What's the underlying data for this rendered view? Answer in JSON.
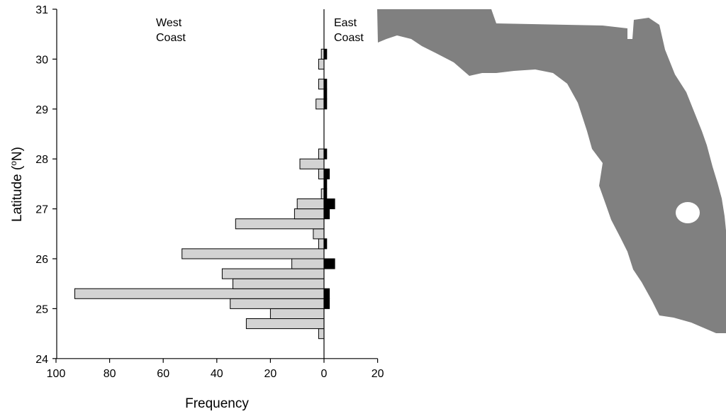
{
  "chart_data": {
    "type": "bar",
    "orientation": "horizontal-diverging",
    "title": "",
    "xlabel": "Frequency",
    "ylabel": "Latitude (°N)",
    "ylabel_parts": {
      "main": "Latitude (",
      "sup": "o",
      "end": "N)"
    },
    "xlim": [
      100,
      20
    ],
    "ylim": [
      24,
      31
    ],
    "x_ticks": [
      "100",
      "80",
      "60",
      "40",
      "20",
      "0",
      "20"
    ],
    "y_ticks": [
      "24",
      "25",
      "26",
      "27",
      "28",
      "29",
      "30",
      "31"
    ],
    "annotations": {
      "west_line1": "West",
      "west_line2": "Coast",
      "east_line1": "East",
      "east_line2": "Coast"
    },
    "bin_size": 0.2,
    "series": [
      {
        "side": "west",
        "color": "#d3d3d3",
        "lat_bottom": [
          24.4,
          24.6,
          24.8,
          25.0,
          25.2,
          25.4,
          25.6,
          25.8,
          26.0,
          26.2,
          26.4,
          26.6,
          26.8,
          27.0,
          27.2,
          27.6,
          27.8,
          28.0,
          29.0,
          29.4,
          29.8,
          30.0
        ],
        "values": [
          2,
          29,
          20,
          35,
          93,
          34,
          38,
          12,
          53,
          2,
          4,
          33,
          11,
          10,
          1,
          2,
          9,
          2,
          3,
          2,
          2,
          1
        ]
      },
      {
        "side": "east",
        "color": "#000000",
        "lat_bottom": [
          25.0,
          25.2,
          25.8,
          26.2,
          26.8,
          27.0,
          27.2,
          27.4,
          27.6,
          28.0,
          29.0,
          29.2,
          29.4,
          30.0
        ],
        "values": [
          2,
          2,
          4,
          1,
          2,
          4,
          1,
          1,
          2,
          1,
          1,
          1,
          1,
          1
        ]
      }
    ]
  },
  "map": {
    "label": "",
    "land_color": "#808080"
  }
}
